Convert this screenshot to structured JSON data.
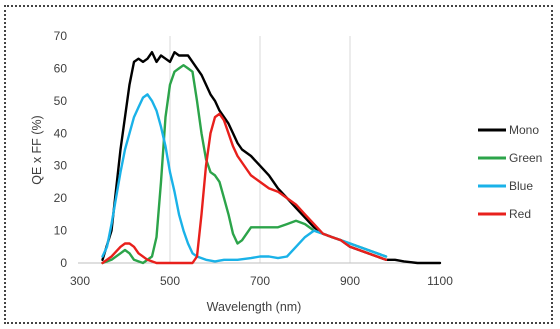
{
  "chart_data": {
    "type": "line",
    "title": "",
    "xlabel": "Wavelength (nm)",
    "ylabel": "QE x FF (%)",
    "xlim": [
      300,
      1100
    ],
    "ylim": [
      0,
      70
    ],
    "x_ticks": [
      300,
      500,
      700,
      900,
      1100
    ],
    "y_ticks": [
      0,
      10,
      20,
      30,
      40,
      50,
      60,
      70
    ],
    "grid": "vertical",
    "legend_position": "right",
    "series": [
      {
        "name": "Mono",
        "color": "#000000",
        "points": [
          [
            350,
            1
          ],
          [
            370,
            10
          ],
          [
            390,
            35
          ],
          [
            410,
            55
          ],
          [
            420,
            62
          ],
          [
            430,
            63
          ],
          [
            440,
            62
          ],
          [
            450,
            63
          ],
          [
            460,
            65
          ],
          [
            470,
            62
          ],
          [
            480,
            64
          ],
          [
            490,
            63
          ],
          [
            500,
            62
          ],
          [
            510,
            65
          ],
          [
            520,
            64
          ],
          [
            530,
            64
          ],
          [
            540,
            64
          ],
          [
            550,
            62
          ],
          [
            560,
            60
          ],
          [
            570,
            58
          ],
          [
            580,
            55
          ],
          [
            590,
            52
          ],
          [
            600,
            50
          ],
          [
            610,
            47
          ],
          [
            620,
            45
          ],
          [
            630,
            43
          ],
          [
            640,
            40
          ],
          [
            650,
            37
          ],
          [
            660,
            35
          ],
          [
            680,
            33
          ],
          [
            700,
            30
          ],
          [
            720,
            27
          ],
          [
            740,
            23
          ],
          [
            760,
            20
          ],
          [
            780,
            17
          ],
          [
            800,
            14
          ],
          [
            820,
            11
          ],
          [
            840,
            9
          ],
          [
            860,
            8
          ],
          [
            880,
            7
          ],
          [
            900,
            5
          ],
          [
            920,
            4
          ],
          [
            940,
            3
          ],
          [
            960,
            2
          ],
          [
            980,
            1
          ],
          [
            1000,
            1
          ],
          [
            1020,
            0.5
          ],
          [
            1050,
            0
          ],
          [
            1100,
            0
          ]
        ]
      },
      {
        "name": "Green",
        "color": "#2ca44a",
        "points": [
          [
            350,
            0
          ],
          [
            370,
            1
          ],
          [
            390,
            3
          ],
          [
            400,
            4
          ],
          [
            410,
            3
          ],
          [
            420,
            1
          ],
          [
            440,
            0
          ],
          [
            460,
            2
          ],
          [
            470,
            8
          ],
          [
            480,
            25
          ],
          [
            490,
            45
          ],
          [
            500,
            55
          ],
          [
            510,
            59
          ],
          [
            520,
            60
          ],
          [
            530,
            61
          ],
          [
            540,
            60
          ],
          [
            550,
            59
          ],
          [
            560,
            50
          ],
          [
            570,
            40
          ],
          [
            580,
            32
          ],
          [
            590,
            28
          ],
          [
            600,
            27
          ],
          [
            610,
            25
          ],
          [
            620,
            20
          ],
          [
            630,
            15
          ],
          [
            640,
            9
          ],
          [
            650,
            6
          ],
          [
            660,
            7
          ],
          [
            680,
            11
          ],
          [
            700,
            11
          ],
          [
            720,
            11
          ],
          [
            740,
            11
          ],
          [
            760,
            12
          ],
          [
            780,
            13
          ],
          [
            800,
            12
          ],
          [
            820,
            10
          ],
          [
            840,
            9
          ],
          [
            860,
            8
          ],
          [
            880,
            7
          ],
          [
            900,
            6
          ],
          [
            920,
            5
          ],
          [
            940,
            4
          ],
          [
            960,
            3
          ],
          [
            980,
            2
          ]
        ]
      },
      {
        "name": "Blue",
        "color": "#1ab2e8",
        "points": [
          [
            350,
            2
          ],
          [
            360,
            5
          ],
          [
            370,
            12
          ],
          [
            380,
            20
          ],
          [
            390,
            28
          ],
          [
            400,
            35
          ],
          [
            410,
            40
          ],
          [
            420,
            45
          ],
          [
            430,
            48
          ],
          [
            440,
            51
          ],
          [
            450,
            52
          ],
          [
            460,
            50
          ],
          [
            470,
            47
          ],
          [
            480,
            42
          ],
          [
            490,
            36
          ],
          [
            500,
            28
          ],
          [
            510,
            22
          ],
          [
            520,
            15
          ],
          [
            530,
            10
          ],
          [
            540,
            6
          ],
          [
            550,
            3
          ],
          [
            560,
            2
          ],
          [
            580,
            1
          ],
          [
            600,
            0.5
          ],
          [
            620,
            1
          ],
          [
            650,
            1
          ],
          [
            680,
            1.5
          ],
          [
            700,
            2
          ],
          [
            720,
            2
          ],
          [
            740,
            1.5
          ],
          [
            760,
            2
          ],
          [
            780,
            5
          ],
          [
            800,
            8
          ],
          [
            820,
            10
          ],
          [
            840,
            9
          ],
          [
            860,
            8
          ],
          [
            880,
            7
          ],
          [
            900,
            6
          ],
          [
            920,
            5
          ],
          [
            940,
            4
          ],
          [
            960,
            3
          ],
          [
            980,
            2
          ]
        ]
      },
      {
        "name": "Red",
        "color": "#e8201c",
        "points": [
          [
            350,
            0
          ],
          [
            370,
            2
          ],
          [
            390,
            5
          ],
          [
            400,
            6
          ],
          [
            410,
            6
          ],
          [
            420,
            5
          ],
          [
            430,
            3
          ],
          [
            450,
            1
          ],
          [
            470,
            0
          ],
          [
            500,
            0
          ],
          [
            530,
            0
          ],
          [
            550,
            0
          ],
          [
            560,
            2
          ],
          [
            570,
            15
          ],
          [
            580,
            30
          ],
          [
            590,
            40
          ],
          [
            600,
            45
          ],
          [
            610,
            46
          ],
          [
            620,
            44
          ],
          [
            630,
            40
          ],
          [
            640,
            36
          ],
          [
            650,
            33
          ],
          [
            660,
            31
          ],
          [
            670,
            29
          ],
          [
            680,
            27
          ],
          [
            700,
            25
          ],
          [
            720,
            23
          ],
          [
            740,
            22
          ],
          [
            760,
            20
          ],
          [
            780,
            18
          ],
          [
            800,
            15
          ],
          [
            820,
            12
          ],
          [
            840,
            9
          ],
          [
            860,
            8
          ],
          [
            880,
            7
          ],
          [
            900,
            5
          ],
          [
            920,
            4
          ],
          [
            940,
            3
          ],
          [
            960,
            2
          ],
          [
            980,
            1
          ]
        ]
      }
    ]
  }
}
